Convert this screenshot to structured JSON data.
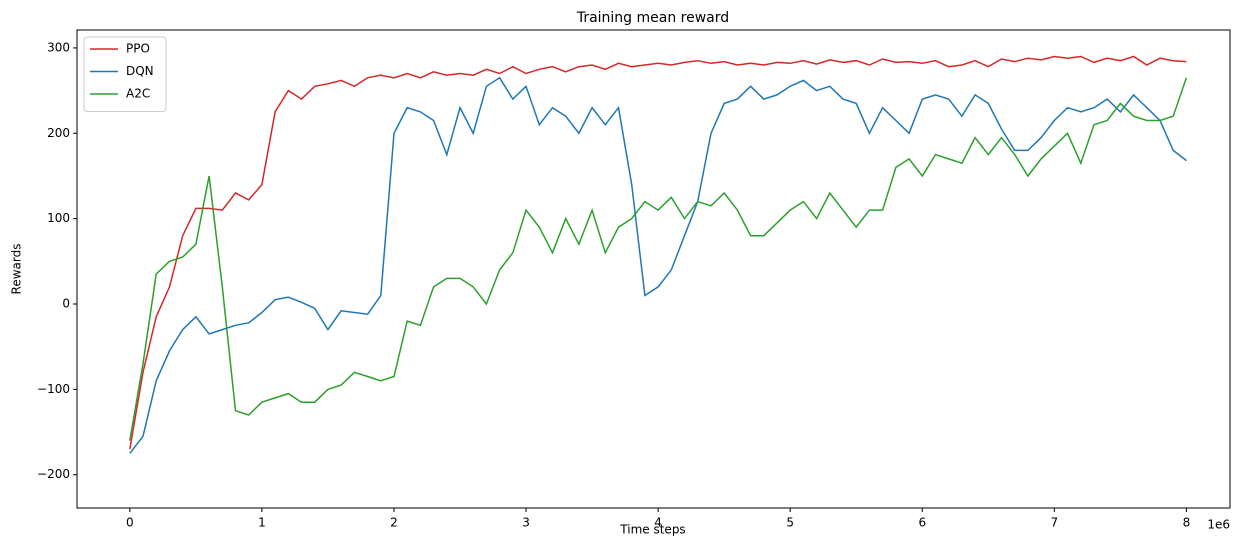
{
  "chart_data": {
    "type": "line",
    "title": "Training mean reward",
    "xlabel": "Time steps",
    "ylabel": "Rewards",
    "x_offset_label": "1e6",
    "x": [
      0,
      0.1,
      0.2,
      0.3,
      0.4,
      0.5,
      0.6,
      0.7,
      0.8,
      0.9,
      1.0,
      1.1,
      1.2,
      1.3,
      1.4,
      1.5,
      1.6,
      1.7,
      1.8,
      1.9,
      2.0,
      2.1,
      2.2,
      2.3,
      2.4,
      2.5,
      2.6,
      2.7,
      2.8,
      2.9,
      3.0,
      3.1,
      3.2,
      3.3,
      3.4,
      3.5,
      3.6,
      3.7,
      3.8,
      3.9,
      4.0,
      4.1,
      4.2,
      4.3,
      4.4,
      4.5,
      4.6,
      4.7,
      4.8,
      4.9,
      5.0,
      5.1,
      5.2,
      5.3,
      5.4,
      5.5,
      5.6,
      5.7,
      5.8,
      5.9,
      6.0,
      6.1,
      6.2,
      6.3,
      6.4,
      6.5,
      6.6,
      6.7,
      6.8,
      6.9,
      7.0,
      7.1,
      7.2,
      7.3,
      7.4,
      7.5,
      7.6,
      7.7,
      7.8,
      7.9,
      8.0
    ],
    "series": [
      {
        "name": "PPO",
        "color": "#d62728",
        "values": [
          -170,
          -80,
          -15,
          20,
          80,
          112,
          112,
          110,
          130,
          122,
          140,
          225,
          250,
          240,
          255,
          258,
          262,
          255,
          265,
          268,
          265,
          270,
          265,
          272,
          268,
          270,
          268,
          275,
          270,
          278,
          270,
          275,
          278,
          272,
          278,
          280,
          275,
          282,
          278,
          280,
          282,
          280,
          283,
          285,
          282,
          284,
          280,
          282,
          280,
          283,
          282,
          285,
          281,
          286,
          283,
          285,
          280,
          287,
          283,
          284,
          282,
          285,
          278,
          280,
          285,
          278,
          287,
          284,
          288,
          286,
          290,
          288,
          290,
          283,
          288,
          285,
          290,
          280,
          288,
          285,
          284
        ]
      },
      {
        "name": "DQN",
        "color": "#1f77b4",
        "values": [
          -175,
          -155,
          -90,
          -55,
          -30,
          -15,
          -35,
          -30,
          -25,
          -22,
          -10,
          5,
          8,
          2,
          -5,
          -30,
          -8,
          -10,
          -12,
          10,
          200,
          230,
          225,
          215,
          175,
          230,
          200,
          255,
          265,
          240,
          255,
          210,
          230,
          220,
          200,
          230,
          210,
          230,
          140,
          10,
          20,
          40,
          80,
          120,
          200,
          235,
          240,
          255,
          240,
          245,
          255,
          262,
          250,
          255,
          240,
          235,
          200,
          230,
          215,
          200,
          240,
          245,
          240,
          220,
          245,
          235,
          205,
          180,
          180,
          195,
          215,
          230,
          225,
          230,
          240,
          225,
          245,
          230,
          215,
          180,
          168
        ]
      },
      {
        "name": "A2C",
        "color": "#2ca02c",
        "values": [
          -160,
          -70,
          35,
          50,
          55,
          70,
          150,
          20,
          -125,
          -130,
          -115,
          -110,
          -105,
          -115,
          -115,
          -100,
          -95,
          -80,
          -85,
          -90,
          -85,
          -20,
          -25,
          20,
          30,
          30,
          20,
          0,
          40,
          60,
          110,
          90,
          60,
          100,
          70,
          110,
          60,
          90,
          100,
          120,
          110,
          125,
          100,
          120,
          115,
          130,
          110,
          80,
          80,
          95,
          110,
          120,
          100,
          130,
          110,
          90,
          110,
          110,
          160,
          170,
          150,
          175,
          170,
          165,
          195,
          175,
          195,
          175,
          150,
          170,
          185,
          200,
          165,
          210,
          215,
          235,
          220,
          215,
          215,
          220,
          265
        ]
      }
    ],
    "xlim": [
      -0.4,
      8.33
    ],
    "ylim": [
      -239,
      321
    ],
    "xticks": [
      0,
      1,
      2,
      3,
      4,
      5,
      6,
      7,
      8
    ],
    "yticks": [
      {
        "value": -200,
        "label": "−200"
      },
      {
        "value": -100,
        "label": "−100"
      },
      0,
      100,
      200,
      300
    ],
    "legend": "upper left",
    "grid": false
  }
}
